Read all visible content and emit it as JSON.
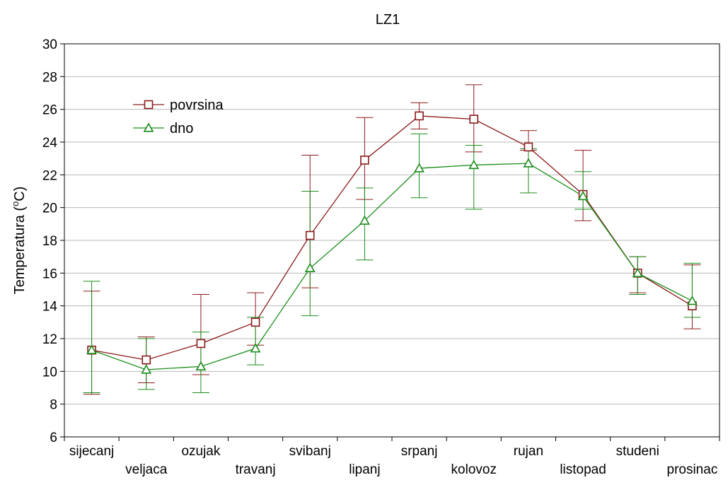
{
  "chart_data": {
    "type": "line",
    "title": "LZ1",
    "ylabel": "Temperatura (",
    "ylabel_sup": "o",
    "ylabel_unit": "C)",
    "xlabel": "",
    "ylim": [
      6,
      30
    ],
    "yticks": [
      6,
      8,
      10,
      12,
      14,
      16,
      18,
      20,
      22,
      24,
      26,
      28,
      30
    ],
    "grid": true,
    "legend_position": "top-left",
    "categories": [
      "sijecanj",
      "veljaca",
      "ozujak",
      "travanj",
      "svibanj",
      "lipanj",
      "srpanj",
      "kolovoz",
      "rujan",
      "listopad",
      "studeni",
      "prosinac"
    ],
    "series": [
      {
        "name": "povrsina",
        "marker": "square",
        "color": "#8b1a1a",
        "values": [
          11.3,
          10.7,
          11.7,
          13.0,
          18.3,
          22.9,
          25.6,
          25.4,
          23.7,
          20.8,
          16.0,
          14.0
        ],
        "err_low": [
          8.6,
          9.3,
          9.8,
          11.6,
          15.1,
          20.5,
          24.8,
          23.4,
          23.5,
          19.2,
          14.8,
          12.6
        ],
        "err_high": [
          14.9,
          12.1,
          14.7,
          14.8,
          23.2,
          25.5,
          26.4,
          27.5,
          24.7,
          23.5,
          17.0,
          16.5
        ]
      },
      {
        "name": "dno",
        "marker": "triangle",
        "color": "#1a8c1a",
        "values": [
          11.3,
          10.1,
          10.3,
          11.4,
          16.3,
          19.2,
          22.4,
          22.6,
          22.7,
          20.7,
          16.0,
          14.3
        ],
        "err_low": [
          8.7,
          8.9,
          8.7,
          10.4,
          13.4,
          16.8,
          20.6,
          19.9,
          20.9,
          19.9,
          14.7,
          13.3
        ],
        "err_high": [
          15.5,
          12.0,
          12.4,
          13.3,
          21.0,
          21.2,
          24.5,
          23.8,
          23.6,
          22.2,
          17.0,
          16.6
        ]
      }
    ]
  }
}
